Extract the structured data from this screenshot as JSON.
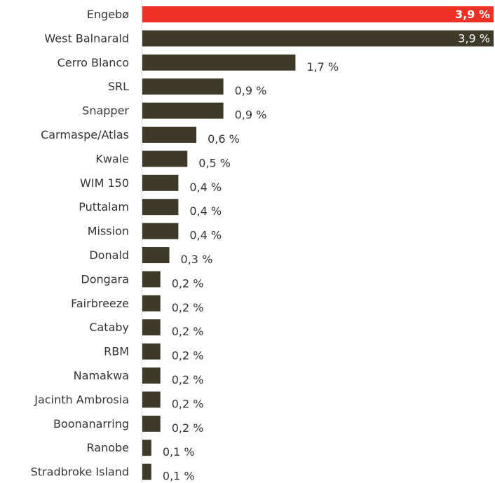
{
  "chart_data": {
    "type": "bar",
    "orientation": "horizontal",
    "title": "",
    "xlabel": "",
    "ylabel": "",
    "xlim": [
      0,
      3.9
    ],
    "grid": false,
    "legend": "none",
    "categories": [
      "Engebø",
      "West Balnarald",
      "Cerro Blanco",
      "SRL",
      "Snapper",
      "Carmaspe/Atlas",
      "Kwale",
      "WIM 150",
      "Puttalam",
      "Mission",
      "Donald",
      "Dongara",
      "Fairbreeze",
      "Cataby",
      "RBM",
      "Namakwa",
      "Jacinth Ambrosia",
      "Boonanarring",
      "Ranobe",
      "Stradbroke Island"
    ],
    "values": [
      3.9,
      3.9,
      1.7,
      0.9,
      0.9,
      0.6,
      0.5,
      0.4,
      0.4,
      0.4,
      0.3,
      0.2,
      0.2,
      0.2,
      0.2,
      0.2,
      0.2,
      0.2,
      0.1,
      0.1
    ],
    "data_labels": [
      "3,9 %",
      "3,9 %",
      "1,7 %",
      "0,9 %",
      "0,9 %",
      "0,6 %",
      "0,5 %",
      "0,4 %",
      "0,4 %",
      "0,4 %",
      "0,3 %",
      "0,2 %",
      "0,2 %",
      "0,2 %",
      "0,2 %",
      "0,2 %",
      "0,2 %",
      "0,2 %",
      "0,1 %",
      "0,1 %"
    ],
    "highlight_index": 0,
    "colors": {
      "bar": "#3d3a2a",
      "highlight": "#ee3124",
      "axis": "#d9d9d9",
      "text": "#333333"
    }
  }
}
